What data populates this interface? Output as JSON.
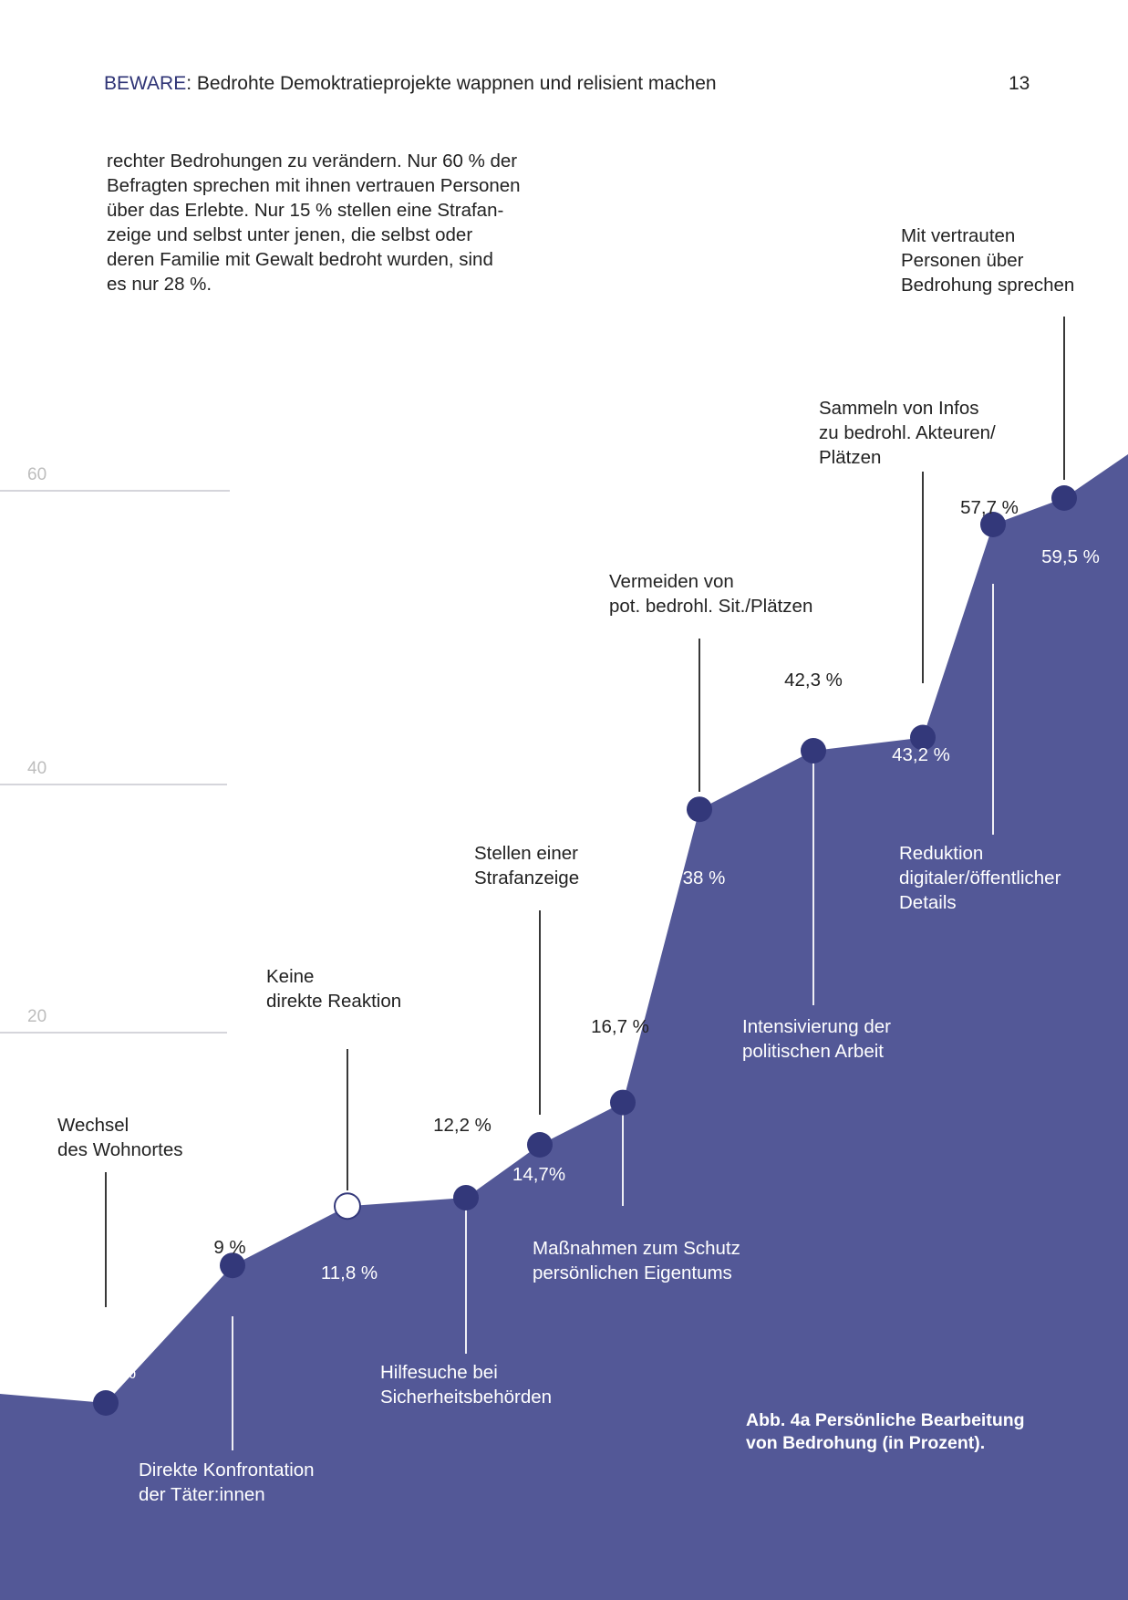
{
  "header": {
    "brand": "BEWARE",
    "title": ": Bedrohte Demoktratieprojekte wappnen und relisient machen",
    "page_number": "13"
  },
  "intro_lines": [
    "rechter Bedrohungen zu verändern. Nur 60 % der",
    "Befragten sprechen mit ihnen vertrauen Personen",
    "über das Erlebte. Nur 15 % stellen eine Strafan-",
    "zeige und selbst unter jenen, die selbst oder",
    "deren Familie mit Gewalt bedroht wurden, sind",
    "es nur 28 %."
  ],
  "colors": {
    "area": "#535897",
    "point": "#33387a",
    "highlight_point": "#ffffff",
    "text_dark": "#222222",
    "text_light": "#ffffff",
    "gridline": "#c7c7cf",
    "tick": "#bdbdbd"
  },
  "chart_data": {
    "type": "area",
    "title": "",
    "caption_lines": [
      "Abb. 4a Persönliche Bearbeitung",
      "von Bedrohung (in Prozent)."
    ],
    "xlabel": "",
    "ylabel": "",
    "ylim": [
      0,
      80
    ],
    "yticks": [
      0,
      20,
      40,
      60
    ],
    "grid": true,
    "points": [
      {
        "category": [
          "Wechsel",
          "des Wohnortes"
        ],
        "value": 2.5,
        "label": "2,5 %",
        "highlight": false
      },
      {
        "category": [
          "Direkte Konfrontation",
          "der Täter:innen"
        ],
        "value": 9,
        "label": "9 %",
        "highlight": false
      },
      {
        "category": [
          "Keine",
          "direkte Reaktion"
        ],
        "value": 11.8,
        "label": "11,8 %",
        "highlight": true
      },
      {
        "category": [
          "Hilfesuche bei",
          "Sicherheitsbehörden"
        ],
        "value": 12.2,
        "label": "12,2 %",
        "highlight": false
      },
      {
        "category": [
          "Stellen einer",
          "Strafanzeige"
        ],
        "value": 14.7,
        "label": "14,7%",
        "highlight": false
      },
      {
        "category": [
          "Maßnahmen zum Schutz",
          "persönlichen Eigentums"
        ],
        "value": 16.7,
        "label": "16,7 %",
        "highlight": false
      },
      {
        "category": [
          "Vermeiden von",
          "pot. bedrohl. Sit./Plätzen"
        ],
        "value": 38,
        "label": "38 %",
        "highlight": false
      },
      {
        "category": [
          "Intensivierung der",
          "politischen Arbeit"
        ],
        "value": 42.3,
        "label": "42,3 %",
        "highlight": false
      },
      {
        "category": [
          "Sammeln von Infos",
          "zu bedrohl. Akteuren/",
          "Plätzen"
        ],
        "value": 43.2,
        "label": "43,2 %",
        "highlight": false
      },
      {
        "category": [
          "Reduktion",
          "digitaler/öffentlicher",
          "Details"
        ],
        "value": 57.7,
        "label": "57,7 %",
        "highlight": false
      },
      {
        "category": [
          "Mit vertrauten",
          "Personen über",
          "Bedrohung sprechen"
        ],
        "value": 59.5,
        "label": "59,5 %",
        "highlight": false
      }
    ]
  }
}
